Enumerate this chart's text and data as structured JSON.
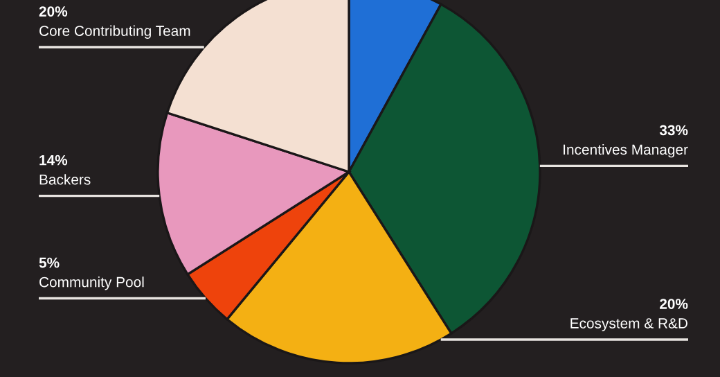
{
  "chart_data": {
    "type": "pie",
    "categories": [
      null,
      "Incentives Manager",
      "Ecosystem & R&D",
      "Community Pool",
      "Backers",
      "Core Contributing Team"
    ],
    "values": [
      8,
      33,
      20,
      5,
      14,
      20
    ],
    "value_labels": [
      null,
      "33%",
      "20%",
      "5%",
      "14%",
      "20%"
    ],
    "colors": [
      "#1f6fd6",
      "#0d5634",
      "#f4b013",
      "#ee430c",
      "#e898bd",
      "#f4e0d2"
    ],
    "legend": false
  }
}
